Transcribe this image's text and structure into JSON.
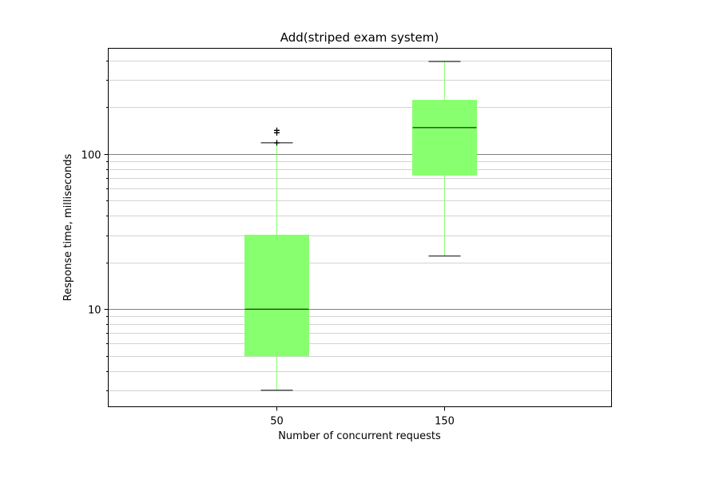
{
  "chart_data": {
    "type": "box",
    "title": "Add(striped exam system)",
    "xlabel": "Number of concurrent requests",
    "ylabel": "Response time, milliseconds",
    "yscale": "log",
    "ylim": [
      2.35,
      480
    ],
    "y_ticks": [
      10,
      100
    ],
    "y_tick_labels": [
      "10",
      "100"
    ],
    "grid": "horizontal, major and minor",
    "box_color": "#88ff6e",
    "whisker_color": "#88ff6e",
    "cap_color": "#000000",
    "median_color": "#000000",
    "major_grid_color": "#808080",
    "minor_grid_color": "#d3d3d3",
    "categories": [
      "50",
      "150"
    ],
    "boxes": [
      {
        "label": "50",
        "whisker_low": 3,
        "q1": 5,
        "median": 10,
        "q3": 30,
        "whisker_high": 118,
        "outliers": [
          118,
          137,
          142
        ]
      },
      {
        "label": "150",
        "whisker_low": 22,
        "q1": 73,
        "median": 148,
        "q3": 222,
        "whisker_high": 395,
        "outliers": []
      }
    ]
  }
}
